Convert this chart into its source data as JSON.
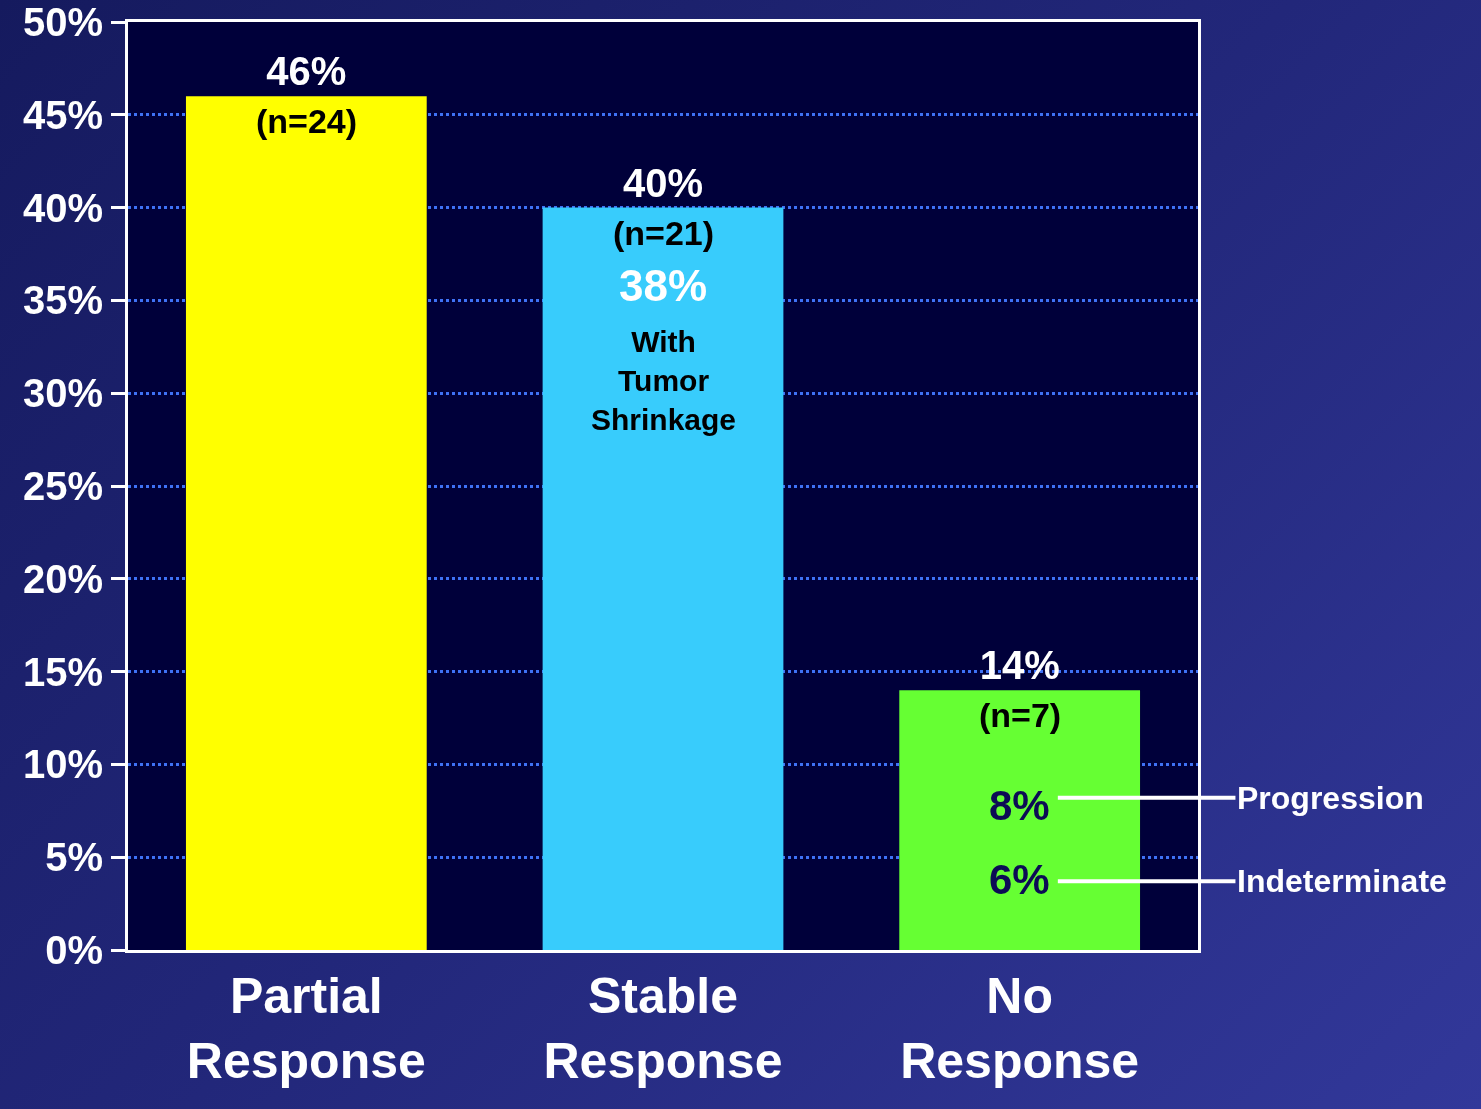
{
  "chart_data": {
    "type": "bar",
    "categories": [
      "Partial Response",
      "Stable Response",
      "No Response"
    ],
    "values": [
      46,
      40,
      14
    ],
    "colors": [
      "#ffff00",
      "#38ccfc",
      "#66ff33"
    ],
    "value_labels": [
      "46%",
      "40%",
      "14%"
    ],
    "ylim": [
      0,
      50
    ],
    "yticks": [
      {
        "value": 0,
        "label": "0%"
      },
      {
        "value": 5,
        "label": "5%"
      },
      {
        "value": 10,
        "label": "10%"
      },
      {
        "value": 15,
        "label": "15%"
      },
      {
        "value": 20,
        "label": "20%"
      },
      {
        "value": 25,
        "label": "25%"
      },
      {
        "value": 30,
        "label": "30%"
      },
      {
        "value": 35,
        "label": "35%"
      },
      {
        "value": 40,
        "label": "40%"
      },
      {
        "value": 45,
        "label": "45%"
      },
      {
        "value": 50,
        "label": "50%"
      }
    ],
    "grid": "y",
    "legend": false,
    "annotations": [
      {
        "text": "(n=24)",
        "x": "Partial Response",
        "y": 46
      },
      {
        "text": "(n=21)",
        "x": "Stable Response",
        "y": 40
      },
      {
        "text": "(n=7)",
        "x": "No Response",
        "y": 14
      },
      "38%",
      "With Tumor Shrinkage",
      "8%",
      "6%",
      "Progression",
      "Indeterminate"
    ]
  }
}
